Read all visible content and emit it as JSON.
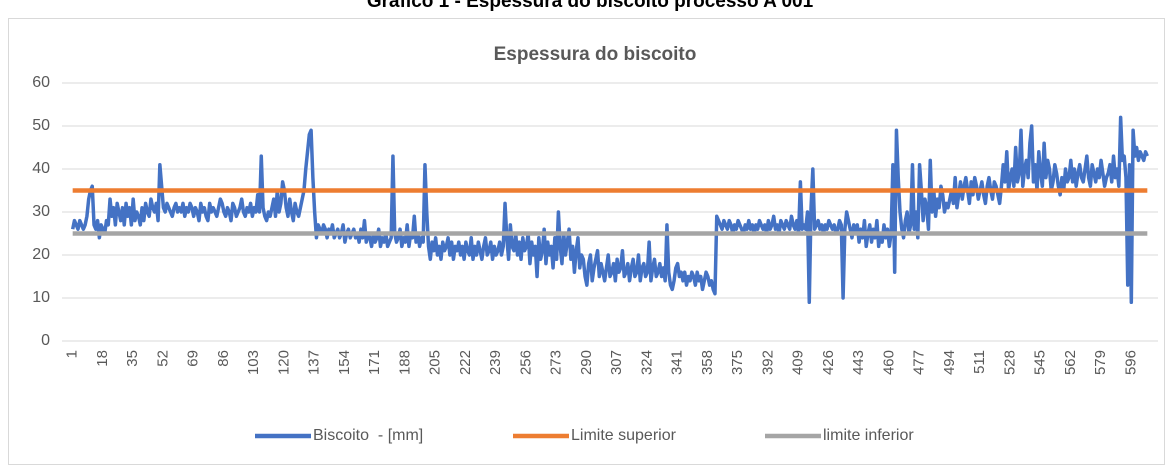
{
  "chart_data": {
    "type": "line",
    "page_title": "Gráfico 1 - Espessura do biscoito processo A 001",
    "title": "Espessura do biscoito",
    "xlim": [
      -5,
      611
    ],
    "xticks": [
      1,
      18,
      35,
      52,
      69,
      86,
      103,
      120,
      137,
      154,
      171,
      188,
      205,
      222,
      239,
      256,
      273,
      290,
      307,
      324,
      341,
      358,
      375,
      392,
      409,
      426,
      443,
      460,
      477,
      494,
      511,
      528,
      545,
      562,
      579,
      596
    ],
    "ylim": [
      0,
      60
    ],
    "yticks": [
      0,
      10,
      20,
      30,
      40,
      50,
      60
    ],
    "grid": true,
    "legend": "bottom",
    "x": [
      1,
      2,
      3,
      4,
      5,
      6,
      7,
      8,
      9,
      10,
      11,
      12,
      13,
      14,
      15,
      16,
      17,
      18,
      19,
      20,
      21,
      22,
      23,
      24,
      25,
      26,
      27,
      28,
      29,
      30,
      31,
      32,
      33,
      34,
      35,
      36,
      37,
      38,
      39,
      40,
      41,
      42,
      43,
      44,
      45,
      46,
      47,
      48,
      49,
      50,
      51,
      52,
      53,
      54,
      55,
      56,
      57,
      58,
      59,
      60,
      61,
      62,
      63,
      64,
      65,
      66,
      67,
      68,
      69,
      70,
      71,
      72,
      73,
      74,
      75,
      76,
      77,
      78,
      79,
      80,
      81,
      82,
      83,
      84,
      85,
      86,
      87,
      88,
      89,
      90,
      91,
      92,
      93,
      94,
      95,
      96,
      97,
      98,
      99,
      100,
      101,
      102,
      103,
      104,
      105,
      106,
      107,
      108,
      109,
      110,
      111,
      112,
      113,
      114,
      115,
      116,
      117,
      118,
      119,
      120,
      121,
      122,
      123,
      124,
      125,
      126,
      127,
      128,
      129,
      130,
      131,
      132,
      133,
      134,
      135,
      136,
      137,
      138,
      139,
      140,
      141,
      142,
      143,
      144,
      145,
      146,
      147,
      148,
      149,
      150,
      151,
      152,
      153,
      154,
      155,
      156,
      157,
      158,
      159,
      160,
      161,
      162,
      163,
      164,
      165,
      166,
      167,
      168,
      169,
      170,
      171,
      172,
      173,
      174,
      175,
      176,
      177,
      178,
      179,
      180,
      181,
      182,
      183,
      184,
      185,
      186,
      187,
      188,
      189,
      190,
      191,
      192,
      193,
      194,
      195,
      196,
      197,
      198,
      199,
      200,
      201,
      202,
      203,
      204,
      205,
      206,
      207,
      208,
      209,
      210,
      211,
      212,
      213,
      214,
      215,
      216,
      217,
      218,
      219,
      220,
      221,
      222,
      223,
      224,
      225,
      226,
      227,
      228,
      229,
      230,
      231,
      232,
      233,
      234,
      235,
      236,
      237,
      238,
      239,
      240,
      241,
      242,
      243,
      244,
      245,
      246,
      247,
      248,
      249,
      250,
      251,
      252,
      253,
      254,
      255,
      256,
      257,
      258,
      259,
      260,
      261,
      262,
      263,
      264,
      265,
      266,
      267,
      268,
      269,
      270,
      271,
      272,
      273,
      274,
      275,
      276,
      277,
      278,
      279,
      280,
      281,
      282,
      283,
      284,
      285,
      286,
      287,
      288,
      289,
      290,
      291,
      292,
      293,
      294,
      295,
      296,
      297,
      298,
      299,
      300,
      301,
      302,
      303,
      304,
      305,
      306,
      307,
      308,
      309,
      310,
      311,
      312,
      313,
      314,
      315,
      316,
      317,
      318,
      319,
      320,
      321,
      322,
      323,
      324,
      325,
      326,
      327,
      328,
      329,
      330,
      331,
      332,
      333,
      334,
      335,
      336,
      337,
      338,
      339,
      340,
      341,
      342,
      343,
      344,
      345,
      346,
      347,
      348,
      349,
      350,
      351,
      352,
      353,
      354,
      355,
      356,
      357,
      358,
      359,
      360,
      361,
      362,
      363,
      364,
      365,
      366,
      367,
      368,
      369,
      370,
      371,
      372,
      373,
      374,
      375,
      376,
      377,
      378,
      379,
      380,
      381,
      382,
      383,
      384,
      385,
      386,
      387,
      388,
      389,
      390,
      391,
      392,
      393,
      394,
      395,
      396,
      397,
      398,
      399,
      400,
      401,
      402,
      403,
      404,
      405,
      406,
      407,
      408,
      409,
      410,
      411,
      412,
      413,
      414,
      415,
      416,
      417,
      418,
      419,
      420,
      421,
      422,
      423,
      424,
      425,
      426,
      427,
      428,
      429,
      430,
      431,
      432,
      433,
      434,
      435,
      436,
      437,
      438,
      439,
      440,
      441,
      442,
      443,
      444,
      445,
      446,
      447,
      448,
      449,
      450,
      451,
      452,
      453,
      454,
      455,
      456,
      457,
      458,
      459,
      460,
      461,
      462,
      463,
      464,
      465,
      466,
      467,
      468,
      469,
      470,
      471,
      472,
      473,
      474,
      475,
      476,
      477,
      478,
      479,
      480,
      481,
      482,
      483,
      484,
      485,
      486,
      487,
      488,
      489,
      490,
      491,
      492,
      493,
      494,
      495,
      496,
      497,
      498,
      499,
      500,
      501,
      502,
      503,
      504,
      505,
      506,
      507,
      508,
      509,
      510,
      511,
      512,
      513,
      514,
      515,
      516,
      517,
      518,
      519,
      520,
      521,
      522,
      523,
      524,
      525,
      526,
      527,
      528,
      529,
      530,
      531,
      532,
      533,
      534,
      535,
      536,
      537,
      538,
      539,
      540,
      541,
      542,
      543,
      544,
      545,
      546,
      547,
      548,
      549,
      550,
      551,
      552,
      553,
      554,
      555,
      556,
      557,
      558,
      559,
      560,
      561,
      562,
      563,
      564,
      565,
      566,
      567,
      568,
      569,
      570,
      571,
      572,
      573,
      574,
      575,
      576,
      577,
      578,
      579,
      580,
      581,
      582,
      583,
      584,
      585,
      586,
      587,
      588,
      589,
      590,
      591,
      592,
      593,
      594,
      595,
      596,
      597,
      598,
      599,
      600,
      601,
      602,
      603,
      604,
      605
    ],
    "series": [
      {
        "name": "Biscoito  - [mm]",
        "color": "#4472c4",
        "values": [
          26,
          28,
          27,
          26,
          28,
          27,
          26,
          27,
          29,
          33,
          35,
          36,
          27,
          26,
          28,
          24,
          27,
          26,
          25,
          28,
          27,
          33,
          29,
          31,
          27,
          32,
          30,
          28,
          31,
          27,
          32,
          29,
          31,
          27,
          33,
          28,
          30,
          29,
          27,
          31,
          28,
          32,
          30,
          29,
          33,
          31,
          30,
          32,
          28,
          41,
          36,
          31,
          30,
          32,
          31,
          30,
          29,
          31,
          32,
          30,
          31,
          30,
          32,
          29,
          31,
          30,
          32,
          31,
          29,
          31,
          30,
          28,
          32,
          30,
          31,
          29,
          28,
          32,
          30,
          31,
          30,
          29,
          31,
          33,
          32,
          30,
          29,
          31,
          30,
          28,
          32,
          31,
          29,
          30,
          31,
          33,
          30,
          29,
          31,
          30,
          32,
          29,
          31,
          30,
          34,
          30,
          43,
          31,
          29,
          28,
          30,
          29,
          31,
          33,
          29,
          35,
          30,
          32,
          37,
          35,
          31,
          29,
          33,
          30,
          28,
          32,
          30,
          29,
          31,
          33,
          35,
          40,
          44,
          48,
          49,
          38,
          30,
          24,
          27,
          26,
          25,
          27,
          26,
          24,
          26,
          25,
          27,
          24,
          25,
          26,
          24,
          25,
          27,
          23,
          25,
          26,
          24,
          25,
          26,
          24,
          25,
          23,
          26,
          24,
          28,
          23,
          25,
          24,
          22,
          25,
          23,
          24,
          26,
          22,
          24,
          23,
          25,
          22,
          23,
          24,
          43,
          25,
          23,
          24,
          26,
          22,
          24,
          23,
          27,
          22,
          25,
          24,
          29,
          23,
          25,
          22,
          24,
          23,
          41,
          30,
          22,
          19,
          23,
          21,
          24,
          20,
          22,
          19,
          23,
          21,
          22,
          24,
          20,
          23,
          19,
          22,
          21,
          23,
          20,
          22,
          19,
          23,
          21,
          20,
          24,
          19,
          22,
          20,
          23,
          21,
          19,
          22,
          24,
          20,
          21,
          23,
          19,
          22,
          20,
          21,
          23,
          20,
          22,
          32,
          24,
          19,
          27,
          22,
          21,
          25,
          20,
          23,
          19,
          24,
          21,
          22,
          25,
          18,
          23,
          20,
          22,
          15,
          24,
          19,
          21,
          26,
          18,
          23,
          20,
          22,
          17,
          24,
          19,
          30,
          22,
          18,
          25,
          20,
          23,
          26,
          19,
          22,
          16,
          21,
          24,
          17,
          20,
          19,
          15,
          13,
          18,
          20,
          14,
          17,
          19,
          21,
          15,
          18,
          16,
          14,
          17,
          20,
          15,
          16,
          18,
          14,
          19,
          16,
          17,
          21,
          15,
          16,
          18,
          14,
          17,
          19,
          15,
          16,
          20,
          14,
          17,
          18,
          15,
          16,
          23,
          14,
          17,
          19,
          15,
          16,
          18,
          15,
          17,
          14,
          27,
          16,
          13,
          12,
          14,
          17,
          18,
          15,
          16,
          14,
          16,
          13,
          15,
          14,
          16,
          15,
          13,
          16,
          14,
          15,
          12,
          14,
          16,
          15,
          13,
          14,
          12,
          11,
          29,
          28,
          27,
          26,
          28,
          27,
          26,
          28,
          27,
          25,
          27,
          26,
          28,
          27,
          26,
          25,
          27,
          26,
          28,
          26,
          27,
          25,
          27,
          26,
          28,
          27,
          26,
          27,
          25,
          28,
          26,
          27,
          29,
          26,
          27,
          25,
          28,
          27,
          26,
          28,
          27,
          26,
          29,
          27,
          26,
          28,
          25,
          37,
          26,
          27,
          26,
          30,
          9,
          31,
          40,
          26,
          27,
          28,
          26,
          27,
          25,
          27,
          26,
          28,
          27,
          26,
          27,
          25,
          26,
          28,
          27,
          10,
          26,
          30,
          28,
          26,
          24,
          27,
          25,
          27,
          23,
          26,
          24,
          28,
          22,
          25,
          27,
          23,
          26,
          24,
          28,
          22,
          25,
          23,
          27,
          24,
          26,
          22,
          25,
          41,
          16,
          49,
          38,
          30,
          26,
          24,
          28,
          30,
          25,
          27,
          41,
          26,
          30,
          24,
          41,
          35,
          28,
          33,
          31,
          26,
          42,
          30,
          35,
          29,
          33,
          31,
          36,
          34,
          30,
          32,
          31,
          33,
          35,
          32,
          38,
          31,
          34,
          37,
          33,
          36,
          38,
          35,
          32,
          37,
          34,
          38,
          36,
          33,
          35,
          37,
          34,
          32,
          36,
          38,
          35,
          33,
          37,
          36,
          34,
          32,
          36,
          41,
          37,
          44,
          35,
          38,
          40,
          36,
          45,
          37,
          39,
          49,
          36,
          40,
          42,
          38,
          46,
          50,
          37,
          41,
          35,
          44,
          39,
          36,
          46,
          38,
          42,
          40,
          35,
          37,
          41,
          39,
          36,
          34,
          38,
          35,
          40,
          37,
          38,
          42,
          37,
          40,
          36,
          39,
          41,
          38,
          37,
          40,
          43,
          38,
          36,
          41,
          39,
          37,
          40,
          38,
          42,
          39,
          36,
          38,
          39,
          41,
          37,
          43,
          38,
          40,
          36,
          52,
          42,
          43,
          38,
          13,
          41,
          9,
          49,
          43,
          45,
          42,
          44,
          43,
          42,
          44,
          43
        ]
      }
    ],
    "reference_lines": [
      {
        "name": "Limite superior",
        "color": "#ed7d31",
        "value": 35
      },
      {
        "name": "limite inferior",
        "color": "#a5a5a5",
        "value": 25
      }
    ]
  }
}
